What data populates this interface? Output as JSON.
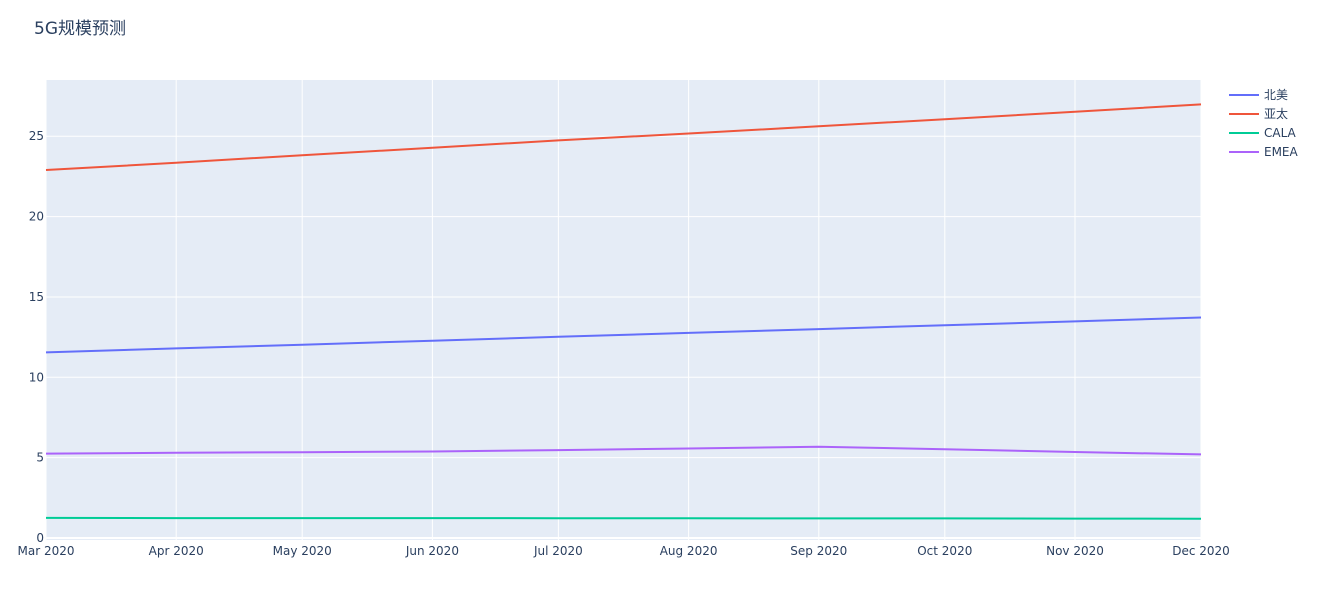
{
  "chart_data": {
    "type": "line",
    "title": "5G规模预测",
    "xlabel": "",
    "ylabel": "",
    "x": [
      "2020-03-01",
      "2020-04-01",
      "2020-05-01",
      "2020-06-01",
      "2020-07-01",
      "2020-08-01",
      "2020-09-01",
      "2020-10-01",
      "2020-11-01",
      "2020-12-01"
    ],
    "x_tick_labels": [
      "Mar 2020",
      "Apr 2020",
      "May 2020",
      "Jun 2020",
      "Jul 2020",
      "Aug 2020",
      "Sep 2020",
      "Oct 2020",
      "Nov 2020",
      "Dec 2020"
    ],
    "y_ticks": [
      0,
      5,
      10,
      15,
      20,
      25
    ],
    "ylim": [
      0,
      28.5
    ],
    "grid": true,
    "legend_position": "top-right",
    "series": [
      {
        "name": "北美",
        "color": "#636efa",
        "values": [
          11.55,
          11.8,
          12.03,
          12.28,
          12.52,
          12.76,
          13.0,
          13.24,
          13.48,
          13.72
        ]
      },
      {
        "name": "亚太",
        "color": "#ef553b",
        "values": [
          22.9,
          23.35,
          23.82,
          24.28,
          24.74,
          25.17,
          25.62,
          26.06,
          26.52,
          26.98
        ]
      },
      {
        "name": "CALA",
        "color": "#00cc96",
        "values": [
          1.25,
          1.24,
          1.24,
          1.24,
          1.23,
          1.23,
          1.22,
          1.22,
          1.21,
          1.2
        ]
      },
      {
        "name": "EMEA",
        "color": "#ab63fa",
        "values": [
          5.25,
          5.3,
          5.34,
          5.38,
          5.47,
          5.57,
          5.68,
          5.52,
          5.35,
          5.2
        ]
      }
    ]
  }
}
